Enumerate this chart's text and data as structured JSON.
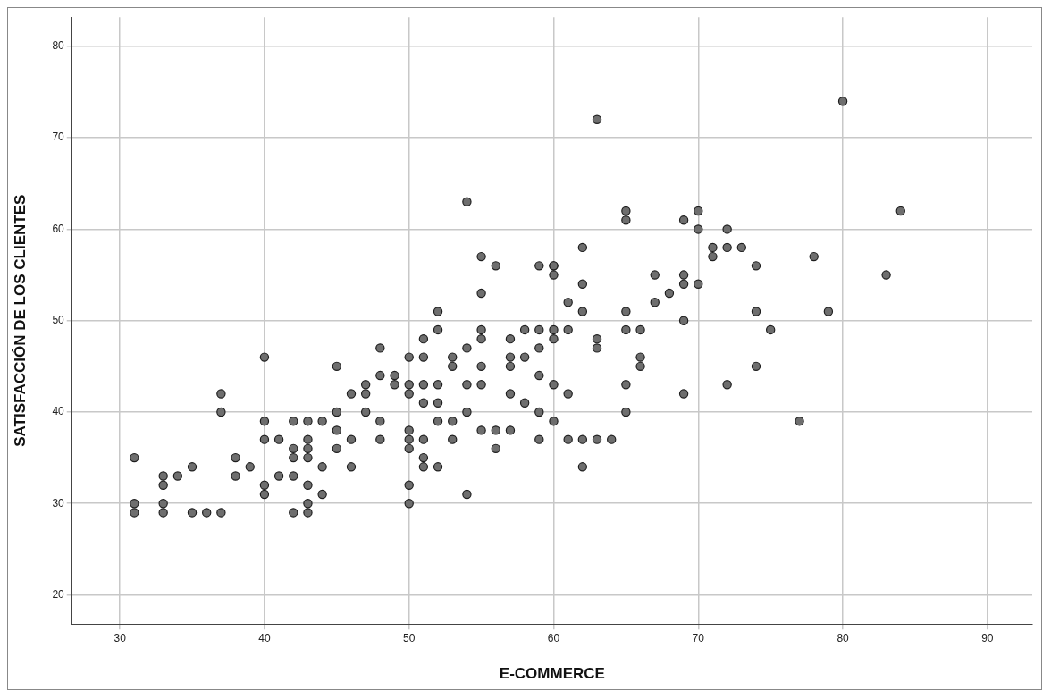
{
  "chart_data": {
    "type": "scatter",
    "xlabel": "E-COMMERCE",
    "ylabel": "SATISFACCIÓN DE LOS CLIENTES",
    "x": [
      31,
      31,
      31,
      33,
      33,
      33,
      33,
      34,
      35,
      35,
      36,
      37,
      37,
      37,
      38,
      38,
      39,
      40,
      40,
      40,
      40,
      40,
      41,
      41,
      42,
      42,
      42,
      42,
      42,
      43,
      43,
      43,
      43,
      43,
      43,
      43,
      44,
      44,
      44,
      45,
      45,
      45,
      45,
      46,
      46,
      46,
      47,
      47,
      47,
      48,
      48,
      48,
      48,
      49,
      49,
      50,
      50,
      50,
      50,
      50,
      50,
      50,
      50,
      51,
      51,
      51,
      51,
      51,
      51,
      51,
      52,
      52,
      52,
      52,
      52,
      52,
      53,
      53,
      53,
      53,
      54,
      54,
      54,
      54,
      54,
      55,
      55,
      55,
      55,
      55,
      55,
      55,
      56,
      56,
      56,
      57,
      57,
      57,
      57,
      57,
      58,
      58,
      58,
      59,
      59,
      59,
      59,
      59,
      59,
      60,
      60,
      60,
      60,
      60,
      60,
      60,
      61,
      61,
      61,
      61,
      62,
      62,
      62,
      62,
      62,
      63,
      63,
      63,
      63,
      64,
      65,
      65,
      65,
      65,
      65,
      65,
      66,
      66,
      66,
      67,
      67,
      68,
      69,
      69,
      69,
      69,
      69,
      70,
      70,
      70,
      71,
      71,
      72,
      72,
      72,
      73,
      74,
      74,
      74,
      75,
      77,
      78,
      79,
      80,
      83,
      84
    ],
    "series": [
      {
        "color": "#6e6e6e",
        "values": [
          35,
          30,
          29,
          33,
          32,
          30,
          29,
          33,
          34,
          29,
          29,
          42,
          40,
          29,
          35,
          33,
          34,
          46,
          39,
          37,
          32,
          31,
          37,
          33,
          39,
          36,
          35,
          33,
          29,
          39,
          37,
          36,
          35,
          32,
          30,
          29,
          39,
          34,
          31,
          45,
          40,
          38,
          36,
          42,
          37,
          34,
          43,
          42,
          40,
          47,
          44,
          39,
          37,
          44,
          43,
          46,
          43,
          42,
          38,
          37,
          36,
          32,
          30,
          48,
          46,
          43,
          41,
          37,
          35,
          34,
          51,
          49,
          43,
          41,
          39,
          34,
          46,
          45,
          39,
          37,
          63,
          47,
          43,
          40,
          31,
          57,
          53,
          49,
          48,
          45,
          43,
          38,
          56,
          38,
          36,
          48,
          46,
          45,
          42,
          38,
          49,
          46,
          41,
          56,
          49,
          47,
          44,
          40,
          37,
          56,
          55,
          49,
          48,
          43,
          39,
          56,
          52,
          49,
          42,
          37,
          58,
          54,
          51,
          37,
          34,
          72,
          48,
          47,
          37,
          37,
          62,
          61,
          51,
          49,
          43,
          40,
          49,
          46,
          45,
          55,
          52,
          53,
          61,
          55,
          54,
          50,
          42,
          62,
          60,
          54,
          58,
          57,
          60,
          58,
          43,
          58,
          56,
          51,
          45,
          49,
          39,
          57,
          51,
          74,
          55,
          62
        ]
      }
    ],
    "xlim": [
      26.7,
      93.1
    ],
    "ylim": [
      16.8,
      83.2
    ],
    "xticks": [
      30,
      40,
      50,
      60,
      70,
      80,
      90
    ],
    "yticks": [
      20,
      30,
      40,
      50,
      60,
      70,
      80
    ],
    "grid": true,
    "marker": "circle"
  }
}
